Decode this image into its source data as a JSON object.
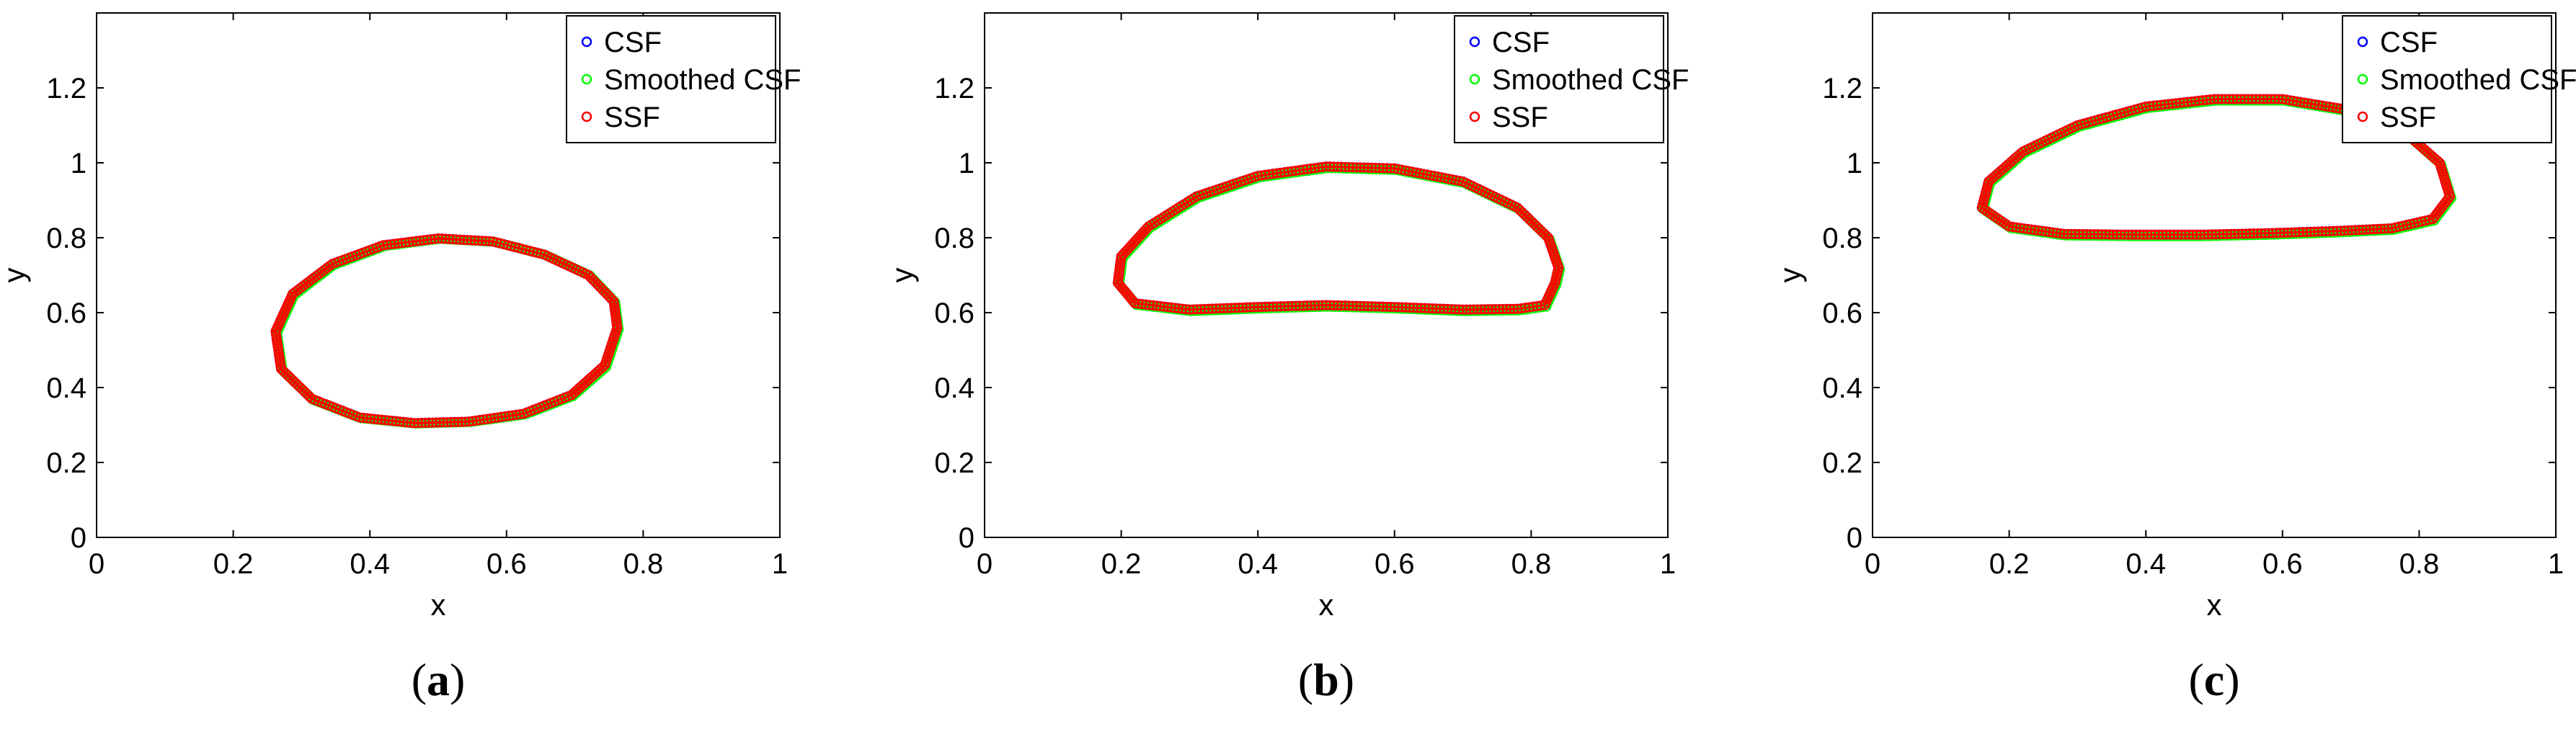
{
  "chart_data": [
    {
      "type": "scatter",
      "panel_label": "(a)",
      "panel_letter": "a",
      "xlabel": "x",
      "ylabel": "y",
      "xlim": [
        0,
        1
      ],
      "ylim": [
        0,
        1.4
      ],
      "xticks": [
        0,
        0.2,
        0.4,
        0.6,
        0.8,
        1
      ],
      "xtick_labels": [
        "0",
        "0.2",
        "0.4",
        "0.6",
        "0.8",
        "1"
      ],
      "yticks": [
        0,
        0.2,
        0.4,
        0.6,
        0.8,
        1,
        1.2
      ],
      "ytick_labels": [
        "0",
        "0.2",
        "0.4",
        "0.6",
        "0.8",
        "1",
        "1.2"
      ],
      "grid": false,
      "legend_position": "top-right",
      "series": [
        {
          "name": "CSF",
          "color": "#0000ff",
          "marker": "circle-open",
          "x": [
            0.762,
            0.744,
            0.695,
            0.625,
            0.545,
            0.465,
            0.385,
            0.315,
            0.27,
            0.262,
            0.287,
            0.345,
            0.42,
            0.5,
            0.58,
            0.655,
            0.72,
            0.757,
            0.762
          ],
          "y": [
            0.56,
            0.46,
            0.38,
            0.33,
            0.309,
            0.305,
            0.32,
            0.37,
            0.45,
            0.55,
            0.65,
            0.73,
            0.78,
            0.798,
            0.79,
            0.755,
            0.7,
            0.63,
            0.56
          ]
        },
        {
          "name": "Smoothed CSF",
          "color": "#00ff00",
          "marker": "circle-open",
          "x": [
            0.764,
            0.746,
            0.697,
            0.627,
            0.547,
            0.467,
            0.387,
            0.317,
            0.272,
            0.264,
            0.289,
            0.347,
            0.422,
            0.502,
            0.582,
            0.657,
            0.722,
            0.759,
            0.764
          ],
          "y": [
            0.555,
            0.455,
            0.377,
            0.328,
            0.308,
            0.304,
            0.318,
            0.367,
            0.446,
            0.546,
            0.646,
            0.727,
            0.778,
            0.797,
            0.789,
            0.754,
            0.699,
            0.628,
            0.555
          ]
        },
        {
          "name": "SSF",
          "color": "#ff0000",
          "marker": "circle-open",
          "x": [
            0.762,
            0.744,
            0.695,
            0.625,
            0.545,
            0.465,
            0.385,
            0.315,
            0.27,
            0.262,
            0.287,
            0.345,
            0.42,
            0.5,
            0.58,
            0.655,
            0.72,
            0.757,
            0.762
          ],
          "y": [
            0.56,
            0.46,
            0.38,
            0.33,
            0.309,
            0.305,
            0.32,
            0.37,
            0.45,
            0.55,
            0.65,
            0.73,
            0.78,
            0.798,
            0.79,
            0.755,
            0.7,
            0.63,
            0.56
          ]
        }
      ]
    },
    {
      "type": "scatter",
      "panel_label": "(b)",
      "panel_letter": "b",
      "xlabel": "x",
      "ylabel": "y",
      "xlim": [
        0,
        1
      ],
      "ylim": [
        0,
        1.4
      ],
      "xticks": [
        0,
        0.2,
        0.4,
        0.6,
        0.8,
        1
      ],
      "xtick_labels": [
        "0",
        "0.2",
        "0.4",
        "0.6",
        "0.8",
        "1"
      ],
      "yticks": [
        0,
        0.2,
        0.4,
        0.6,
        0.8,
        1,
        1.2
      ],
      "ytick_labels": [
        "0",
        "0.2",
        "0.4",
        "0.6",
        "0.8",
        "1",
        "1.2"
      ],
      "grid": false,
      "legend_position": "top-right",
      "series": [
        {
          "name": "CSF",
          "color": "#0000ff",
          "marker": "circle-open",
          "x": [
            0.835,
            0.82,
            0.78,
            0.7,
            0.6,
            0.5,
            0.4,
            0.3,
            0.22,
            0.195,
            0.2,
            0.24,
            0.31,
            0.4,
            0.5,
            0.6,
            0.7,
            0.78,
            0.825,
            0.84,
            0.835
          ],
          "y": [
            0.68,
            0.62,
            0.61,
            0.608,
            0.615,
            0.62,
            0.615,
            0.608,
            0.625,
            0.68,
            0.75,
            0.83,
            0.91,
            0.965,
            0.99,
            0.985,
            0.95,
            0.88,
            0.8,
            0.72,
            0.68
          ]
        },
        {
          "name": "Smoothed CSF",
          "color": "#00ff00",
          "marker": "circle-open",
          "x": [
            0.837,
            0.822,
            0.782,
            0.702,
            0.602,
            0.502,
            0.402,
            0.302,
            0.222,
            0.197,
            0.202,
            0.242,
            0.312,
            0.402,
            0.502,
            0.602,
            0.702,
            0.782,
            0.827,
            0.842,
            0.837
          ],
          "y": [
            0.676,
            0.616,
            0.606,
            0.604,
            0.611,
            0.616,
            0.611,
            0.604,
            0.621,
            0.676,
            0.746,
            0.826,
            0.906,
            0.961,
            0.986,
            0.981,
            0.946,
            0.876,
            0.796,
            0.716,
            0.676
          ]
        },
        {
          "name": "SSF",
          "color": "#ff0000",
          "marker": "circle-open",
          "x": [
            0.835,
            0.82,
            0.78,
            0.7,
            0.6,
            0.5,
            0.4,
            0.3,
            0.22,
            0.195,
            0.2,
            0.24,
            0.31,
            0.4,
            0.5,
            0.6,
            0.7,
            0.78,
            0.825,
            0.84,
            0.835
          ],
          "y": [
            0.68,
            0.62,
            0.61,
            0.608,
            0.615,
            0.62,
            0.615,
            0.608,
            0.625,
            0.68,
            0.75,
            0.83,
            0.91,
            0.965,
            0.99,
            0.985,
            0.95,
            0.88,
            0.8,
            0.72,
            0.68
          ]
        }
      ]
    },
    {
      "type": "scatter",
      "panel_label": "(c)",
      "panel_letter": "c",
      "xlabel": "x",
      "ylabel": "y",
      "xlim": [
        0,
        1
      ],
      "ylim": [
        0,
        1.4
      ],
      "xticks": [
        0,
        0.2,
        0.4,
        0.6,
        0.8,
        1
      ],
      "xtick_labels": [
        "0",
        "0.2",
        "0.4",
        "0.6",
        "0.8",
        "1"
      ],
      "yticks": [
        0,
        0.2,
        0.4,
        0.6,
        0.8,
        1,
        1.2
      ],
      "ytick_labels": [
        "0",
        "0.2",
        "0.4",
        "0.6",
        "0.8",
        "1",
        "1.2"
      ],
      "grid": false,
      "legend_position": "top-right",
      "series": [
        {
          "name": "CSF",
          "color": "#0000ff",
          "marker": "circle-open",
          "x": [
            0.845,
            0.82,
            0.76,
            0.68,
            0.58,
            0.48,
            0.38,
            0.28,
            0.2,
            0.16,
            0.17,
            0.22,
            0.3,
            0.4,
            0.5,
            0.6,
            0.7,
            0.78,
            0.83,
            0.845
          ],
          "y": [
            0.91,
            0.85,
            0.825,
            0.818,
            0.812,
            0.808,
            0.808,
            0.81,
            0.83,
            0.88,
            0.95,
            1.03,
            1.1,
            1.15,
            1.17,
            1.17,
            1.14,
            1.08,
            1.0,
            0.91
          ]
        },
        {
          "name": "Smoothed CSF",
          "color": "#00ff00",
          "marker": "circle-open",
          "x": [
            0.847,
            0.822,
            0.762,
            0.682,
            0.582,
            0.482,
            0.382,
            0.282,
            0.202,
            0.162,
            0.172,
            0.222,
            0.302,
            0.402,
            0.502,
            0.602,
            0.702,
            0.782,
            0.832,
            0.847
          ],
          "y": [
            0.906,
            0.846,
            0.821,
            0.814,
            0.808,
            0.804,
            0.804,
            0.806,
            0.826,
            0.876,
            0.946,
            1.026,
            1.096,
            1.146,
            1.166,
            1.166,
            1.136,
            1.076,
            0.996,
            0.906
          ]
        },
        {
          "name": "SSF",
          "color": "#ff0000",
          "marker": "circle-open",
          "x": [
            0.845,
            0.82,
            0.76,
            0.68,
            0.58,
            0.48,
            0.38,
            0.28,
            0.2,
            0.16,
            0.17,
            0.22,
            0.3,
            0.4,
            0.5,
            0.6,
            0.7,
            0.78,
            0.83,
            0.845
          ],
          "y": [
            0.91,
            0.85,
            0.825,
            0.818,
            0.812,
            0.808,
            0.808,
            0.81,
            0.83,
            0.88,
            0.95,
            1.03,
            1.1,
            1.15,
            1.17,
            1.17,
            1.14,
            1.08,
            1.0,
            0.91
          ]
        }
      ]
    }
  ]
}
